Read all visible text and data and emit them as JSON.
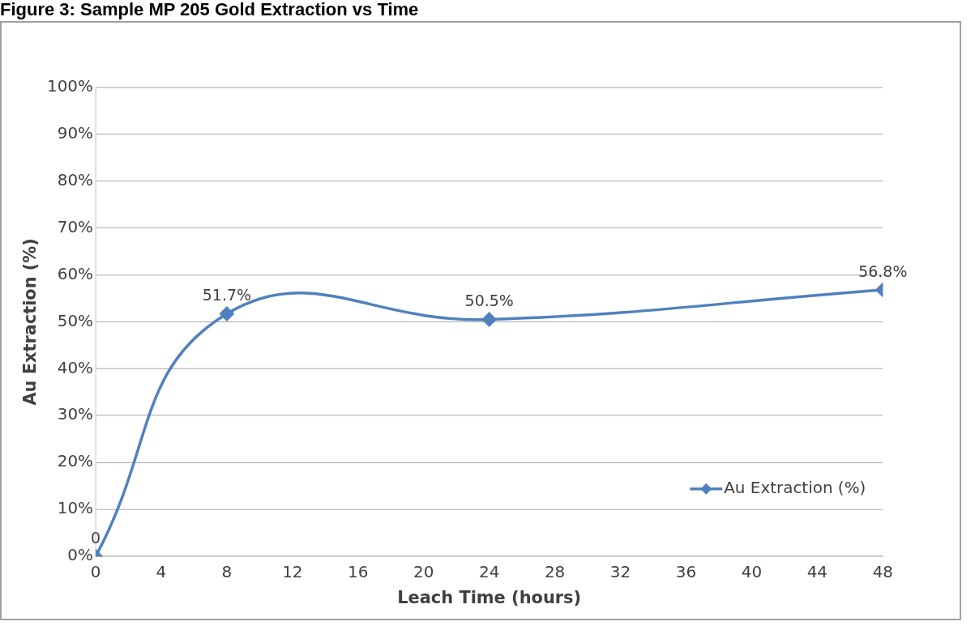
{
  "chart_data": {
    "type": "line",
    "title": "Figure 3: Sample MP 205 Gold Extraction vs Time",
    "xlabel": "Leach Time (hours)",
    "ylabel": "Au Extraction (%)",
    "x": [
      0,
      8,
      24,
      48
    ],
    "series": [
      {
        "name": "Au Extraction (%)",
        "color": "#4f81bd",
        "values": [
          0,
          51.7,
          50.5,
          56.8
        ],
        "value_labels": [
          "0",
          "51.7%",
          "50.5%",
          "56.8%"
        ]
      }
    ],
    "xlim": [
      0,
      48
    ],
    "xticks": [
      0,
      4,
      8,
      12,
      16,
      20,
      24,
      28,
      32,
      36,
      40,
      44,
      48
    ],
    "ylim": [
      0,
      100
    ],
    "yticks": [
      {
        "value": 0,
        "label": "0%"
      },
      {
        "value": 10,
        "label": "10%"
      },
      {
        "value": 20,
        "label": "20%"
      },
      {
        "value": 30,
        "label": "30%"
      },
      {
        "value": 40,
        "label": "40%"
      },
      {
        "value": 50,
        "label": "50%"
      },
      {
        "value": 60,
        "label": "60%"
      },
      {
        "value": 70,
        "label": "70%"
      },
      {
        "value": 80,
        "label": "80%"
      },
      {
        "value": 90,
        "label": "90%"
      },
      {
        "value": 100,
        "label": "100%"
      }
    ],
    "grid": "y",
    "legend": "bottom right",
    "marker": "diamond",
    "line_style": "solid"
  }
}
